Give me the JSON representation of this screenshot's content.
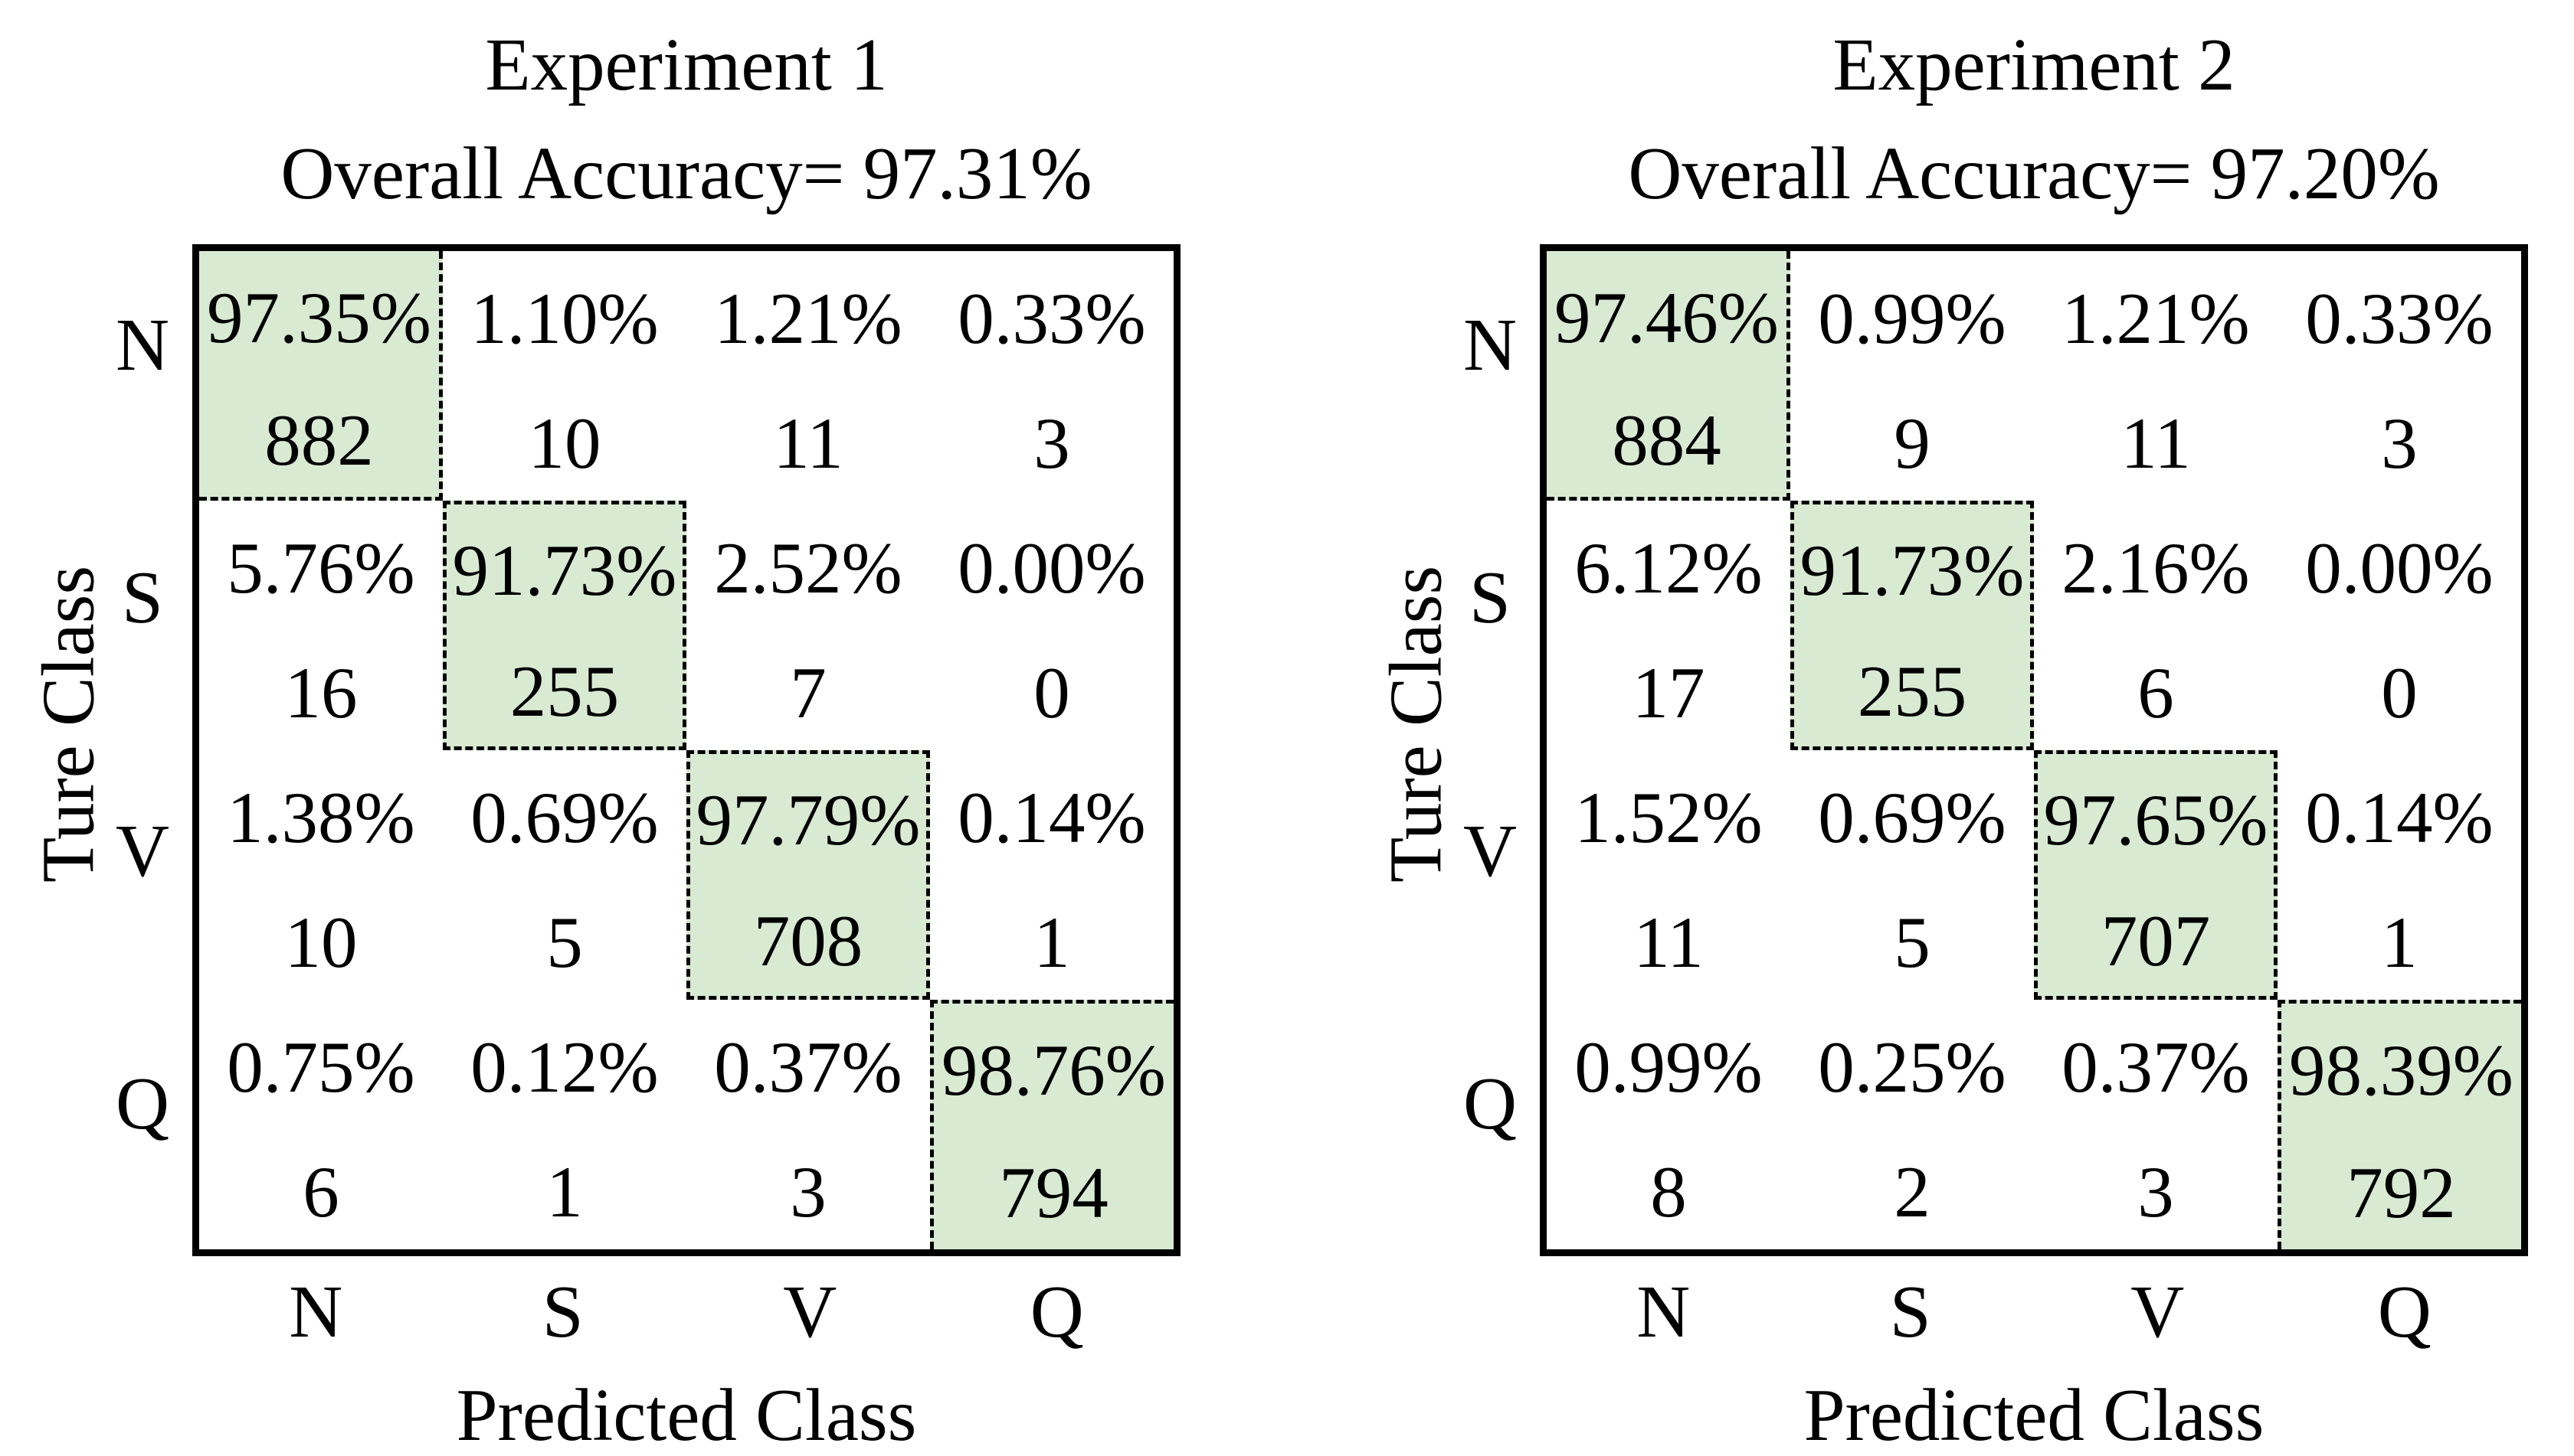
{
  "figure": {
    "background": "#ffffff",
    "text_color": "#000000",
    "highlight_color": "#d9ead3",
    "frame_color": "#000000"
  },
  "axis": {
    "y_label": "Ture Class",
    "x_label": "Predicted Class",
    "classes": [
      "N",
      "S",
      "V",
      "Q"
    ]
  },
  "panels": [
    {
      "title": "Experiment 1",
      "subtitle": "Overall Accuracy= 97.31%",
      "matrix": [
        [
          {
            "pct": "97.35%",
            "count": "882"
          },
          {
            "pct": "1.10%",
            "count": "10"
          },
          {
            "pct": "1.21%",
            "count": "11"
          },
          {
            "pct": "0.33%",
            "count": "3"
          }
        ],
        [
          {
            "pct": "5.76%",
            "count": "16"
          },
          {
            "pct": "91.73%",
            "count": "255"
          },
          {
            "pct": "2.52%",
            "count": "7"
          },
          {
            "pct": "0.00%",
            "count": "0"
          }
        ],
        [
          {
            "pct": "1.38%",
            "count": "10"
          },
          {
            "pct": "0.69%",
            "count": "5"
          },
          {
            "pct": "97.79%",
            "count": "708"
          },
          {
            "pct": "0.14%",
            "count": "1"
          }
        ],
        [
          {
            "pct": "0.75%",
            "count": "6"
          },
          {
            "pct": "0.12%",
            "count": "1"
          },
          {
            "pct": "0.37%",
            "count": "3"
          },
          {
            "pct": "98.76%",
            "count": "794"
          }
        ]
      ]
    },
    {
      "title": "Experiment 2",
      "subtitle": "Overall Accuracy= 97.20%",
      "matrix": [
        [
          {
            "pct": "97.46%",
            "count": "884"
          },
          {
            "pct": "0.99%",
            "count": "9"
          },
          {
            "pct": "1.21%",
            "count": "11"
          },
          {
            "pct": "0.33%",
            "count": "3"
          }
        ],
        [
          {
            "pct": "6.12%",
            "count": "17"
          },
          {
            "pct": "91.73%",
            "count": "255"
          },
          {
            "pct": "2.16%",
            "count": "6"
          },
          {
            "pct": "0.00%",
            "count": "0"
          }
        ],
        [
          {
            "pct": "1.52%",
            "count": "11"
          },
          {
            "pct": "0.69%",
            "count": "5"
          },
          {
            "pct": "97.65%",
            "count": "707"
          },
          {
            "pct": "0.14%",
            "count": "1"
          }
        ],
        [
          {
            "pct": "0.99%",
            "count": "8"
          },
          {
            "pct": "0.25%",
            "count": "2"
          },
          {
            "pct": "0.37%",
            "count": "3"
          },
          {
            "pct": "98.39%",
            "count": "792"
          }
        ]
      ]
    }
  ],
  "chart_data": [
    {
      "type": "heatmap",
      "title": "Experiment 1",
      "subtitle": "Overall Accuracy= 97.31%",
      "xlabel": "Predicted Class",
      "ylabel": "Ture Class",
      "x_categories": [
        "N",
        "S",
        "V",
        "Q"
      ],
      "y_categories": [
        "N",
        "S",
        "V",
        "Q"
      ],
      "percent_matrix": [
        [
          97.35,
          1.1,
          1.21,
          0.33
        ],
        [
          5.76,
          91.73,
          2.52,
          0.0
        ],
        [
          1.38,
          0.69,
          97.79,
          0.14
        ],
        [
          0.75,
          0.12,
          0.37,
          98.76
        ]
      ],
      "count_matrix": [
        [
          882,
          10,
          11,
          3
        ],
        [
          16,
          255,
          7,
          0
        ],
        [
          10,
          5,
          708,
          1
        ],
        [
          6,
          1,
          3,
          794
        ]
      ],
      "overall_accuracy_pct": 97.31,
      "highlighted_cells": "diagonal",
      "highlight_color": "#d9ead3",
      "grid": "dashed outlines on diagonal cells only",
      "legend": "none"
    },
    {
      "type": "heatmap",
      "title": "Experiment 2",
      "subtitle": "Overall Accuracy= 97.20%",
      "xlabel": "Predicted Class",
      "ylabel": "Ture Class",
      "x_categories": [
        "N",
        "S",
        "V",
        "Q"
      ],
      "y_categories": [
        "N",
        "S",
        "V",
        "Q"
      ],
      "percent_matrix": [
        [
          97.46,
          0.99,
          1.21,
          0.33
        ],
        [
          6.12,
          91.73,
          2.16,
          0.0
        ],
        [
          1.52,
          0.69,
          97.65,
          0.14
        ],
        [
          0.99,
          0.25,
          0.37,
          98.39
        ]
      ],
      "count_matrix": [
        [
          884,
          9,
          11,
          3
        ],
        [
          17,
          255,
          6,
          0
        ],
        [
          11,
          5,
          707,
          1
        ],
        [
          8,
          2,
          3,
          792
        ]
      ],
      "overall_accuracy_pct": 97.2,
      "highlighted_cells": "diagonal",
      "highlight_color": "#d9ead3",
      "grid": "dashed outlines on diagonal cells only",
      "legend": "none"
    }
  ]
}
